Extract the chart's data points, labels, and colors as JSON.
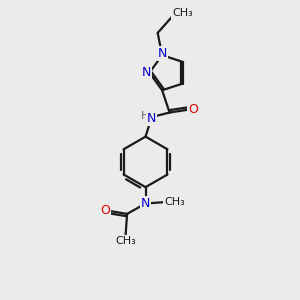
{
  "background_color": "#ebebeb",
  "bond_color": "#1a1a1a",
  "N_color": "#0000cc",
  "O_color": "#dd0000",
  "bond_width": 1.6,
  "dbo": 0.07,
  "figsize": [
    3.0,
    3.0
  ],
  "dpi": 100,
  "xlim": [
    0,
    10
  ],
  "ylim": [
    0,
    10
  ]
}
